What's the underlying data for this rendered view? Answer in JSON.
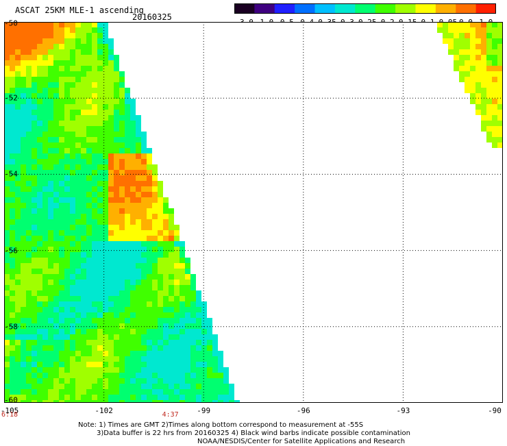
{
  "header": {
    "title": "ASCAT 25KM MLE-1 ascending",
    "date": "20160325"
  },
  "colorbar": {
    "labels": [
      "-3.0",
      "-1.0",
      "-0.5",
      "-0.4",
      "-0.35",
      "-0.3",
      "-0.25",
      "-0.2",
      "-0.15",
      "-0.1",
      "-0.05",
      "0.0",
      "1.0"
    ],
    "colors": [
      "#1a0022",
      "#3f0080",
      "#2020ff",
      "#0070ff",
      "#00c0ff",
      "#00e8d0",
      "#00ff70",
      "#40ff00",
      "#a0ff00",
      "#ffff00",
      "#ffb000",
      "#ff7000",
      "#ff2000"
    ]
  },
  "map": {
    "lon_range": [
      -105,
      -90
    ],
    "lat_range": [
      -60,
      -50
    ],
    "x_ticks": [
      "-105",
      "-102",
      "-99",
      "-96",
      "-93",
      "-90"
    ],
    "y_ticks": [
      "-50",
      "-52",
      "-54",
      "-56",
      "-58",
      "-60"
    ],
    "times": [
      {
        "label": "6:18",
        "lon": -105
      },
      {
        "label": "4:37",
        "lon": -100
      }
    ],
    "gridlines": true
  },
  "notes": [
    "Note: 1) Times are GMT 2)Times along bottom correspond to measurement at -55S",
    "3)Data buffer is 22 hrs from 20160325 4) Black wind barbs indicate possible contamination",
    "NOAA/NESDIS/Center for Satellite Applications and Research"
  ]
}
